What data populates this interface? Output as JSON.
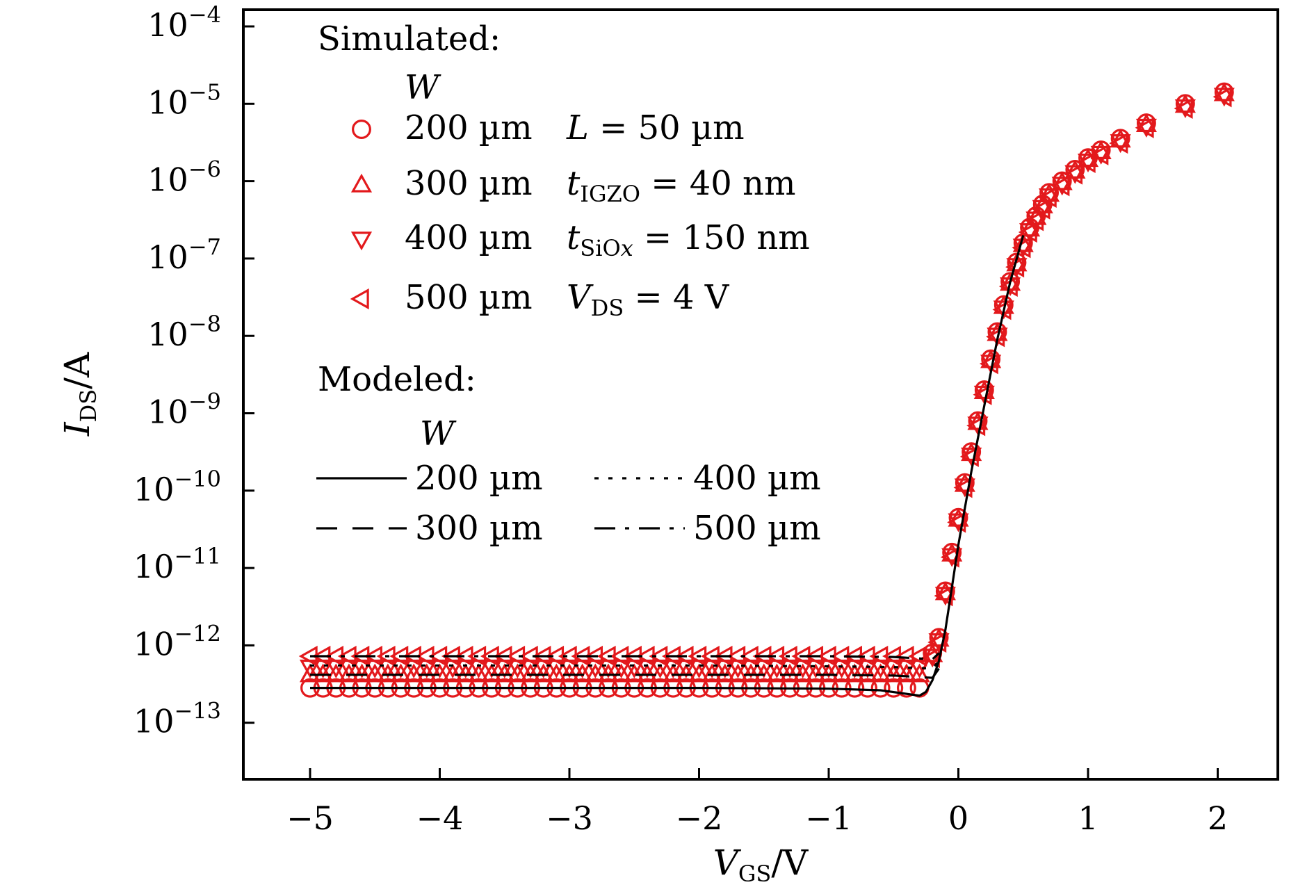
{
  "chart_data": {
    "type": "scatter",
    "xlabel": {
      "main": "V",
      "sub": "GS",
      "unit": "/V"
    },
    "ylabel": {
      "main": "I",
      "sub": "DS",
      "unit": "/A"
    },
    "xlim": [
      -5.5,
      2.5
    ],
    "ylim": [
      -13.8,
      -3.8
    ],
    "y_scale": "log10",
    "grid": false,
    "x_ticks": [
      -5,
      -4,
      -3,
      -2,
      -1,
      0,
      1,
      2
    ],
    "x_tick_labels": [
      "−5",
      "−4",
      "−3",
      "−2",
      "−1",
      "0",
      "1",
      "2"
    ],
    "y_ticks": [
      -4,
      -5,
      -6,
      -7,
      -8,
      -9,
      -10,
      -11,
      -12,
      -13
    ],
    "y_tick_labels": [
      {
        "base": "10",
        "exp": "−4"
      },
      {
        "base": "10",
        "exp": "−5"
      },
      {
        "base": "10",
        "exp": "−6"
      },
      {
        "base": "10",
        "exp": "−7"
      },
      {
        "base": "10",
        "exp": "−8"
      },
      {
        "base": "10",
        "exp": "−9"
      },
      {
        "base": "10",
        "exp": "−10"
      },
      {
        "base": "10",
        "exp": "−11"
      },
      {
        "base": "10",
        "exp": "−12"
      },
      {
        "base": "10",
        "exp": "−13"
      }
    ],
    "simulated": {
      "heading": "Simulated:",
      "param_header": "W",
      "color": "#e3191c",
      "series": [
        {
          "name": "200 µm",
          "marker": "circle",
          "off_log": -12.55
        },
        {
          "name": "300 µm",
          "marker": "triangle-up",
          "off_log": -12.38
        },
        {
          "name": "400 µm",
          "marker": "triangle-down",
          "off_log": -12.28
        },
        {
          "name": "500 µm",
          "marker": "triangle-left",
          "off_log": -12.14
        }
      ],
      "conditions": [
        {
          "lead": "L",
          "sub": "",
          "rest": " = 50 µm"
        },
        {
          "lead": "t",
          "sub": "IGZO",
          "rest": " = 40 nm"
        },
        {
          "lead": "t",
          "sub": "SiOx",
          "rest": " = 150 nm"
        },
        {
          "lead": "V",
          "sub": "DS",
          "rest": " =  4 V"
        }
      ],
      "turn_on": {
        "x": [
          -0.2,
          -0.15,
          -0.1,
          -0.05,
          0.0,
          0.05,
          0.1,
          0.15,
          0.2,
          0.25,
          0.3,
          0.35,
          0.4,
          0.45,
          0.5,
          0.55,
          0.6,
          0.65,
          0.7,
          0.8,
          0.9,
          1.0,
          1.1,
          1.25,
          1.45,
          1.75,
          2.05
        ],
        "log_i": [
          -12.1,
          -11.9,
          -11.3,
          -10.8,
          -10.35,
          -9.9,
          -9.5,
          -9.1,
          -8.7,
          -8.3,
          -7.95,
          -7.6,
          -7.3,
          -7.05,
          -6.8,
          -6.6,
          -6.45,
          -6.3,
          -6.15,
          -6.0,
          -5.85,
          -5.7,
          -5.6,
          -5.45,
          -5.25,
          -5.0,
          -4.85
        ]
      }
    },
    "modeled": {
      "heading": "Modeled:",
      "param_header": "W",
      "color": "#000000",
      "series": [
        {
          "name": "200 µm",
          "linestyle": "solid",
          "x": [
            -5,
            -4,
            -3,
            -2,
            -1,
            -0.6,
            -0.3,
            -0.25,
            -0.2,
            -0.15,
            -0.1,
            -0.05,
            0.0,
            0.1,
            0.2,
            0.3,
            0.4,
            0.5
          ],
          "log_i": [
            -12.55,
            -12.55,
            -12.55,
            -12.55,
            -12.56,
            -12.58,
            -12.65,
            -12.6,
            -12.45,
            -12.2,
            -11.8,
            -11.25,
            -10.7,
            -9.75,
            -8.9,
            -8.05,
            -7.3,
            -6.7
          ]
        },
        {
          "name": "300 µm",
          "linestyle": "dashed",
          "x": [
            -5,
            -4,
            -3,
            -2,
            -1,
            -0.5,
            -0.2,
            -0.15
          ],
          "log_i": [
            -12.38,
            -12.38,
            -12.38,
            -12.38,
            -12.38,
            -12.39,
            -12.42,
            -12.3
          ]
        },
        {
          "name": "400 µm",
          "linestyle": "dotted",
          "x": [
            -5,
            -4,
            -3,
            -2,
            -1,
            -0.5,
            -0.2,
            -0.15
          ],
          "log_i": [
            -12.26,
            -12.26,
            -12.26,
            -12.26,
            -12.27,
            -12.28,
            -12.3,
            -12.2
          ]
        },
        {
          "name": "500 µm",
          "linestyle": "dashdot",
          "x": [
            -5,
            -4,
            -3,
            -2,
            -1,
            -0.5,
            -0.2,
            -0.15
          ],
          "log_i": [
            -12.14,
            -12.14,
            -12.14,
            -12.14,
            -12.14,
            -12.15,
            -12.18,
            -12.1
          ]
        }
      ]
    }
  }
}
